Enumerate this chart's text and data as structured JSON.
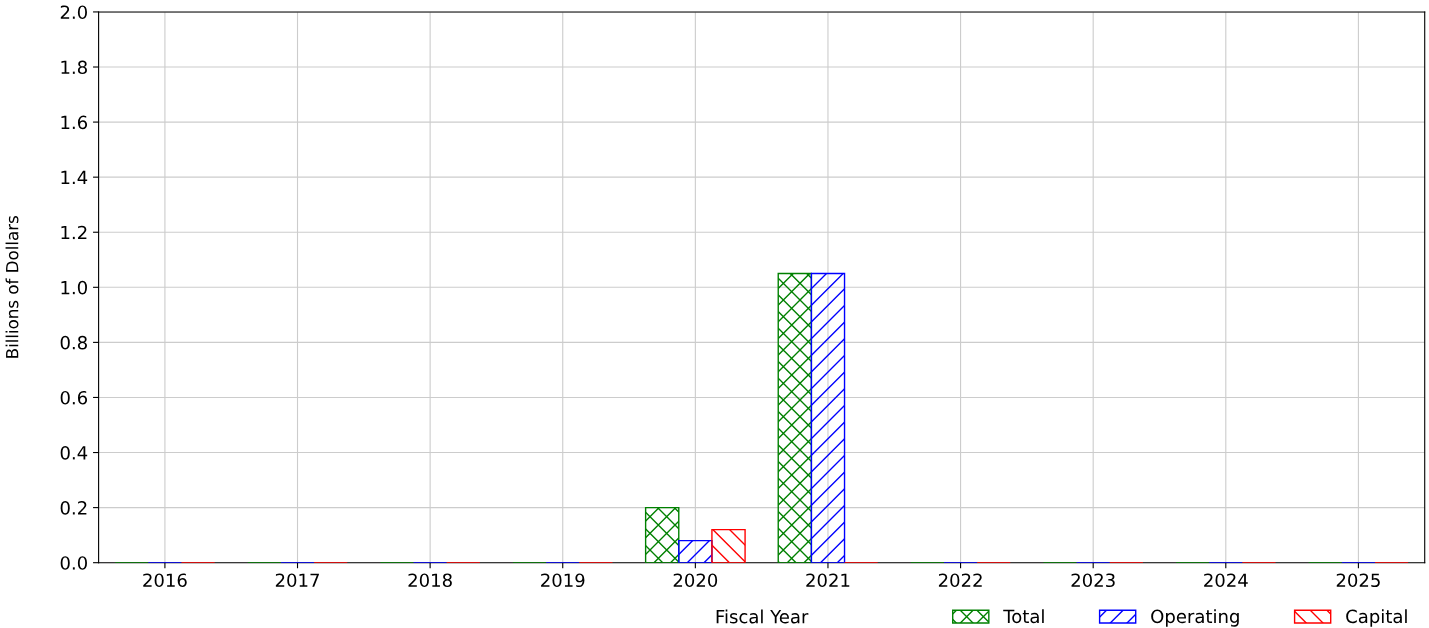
{
  "chart_data": {
    "type": "bar",
    "xlabel": "Fiscal Year",
    "ylabel": "Billions of Dollars",
    "categories": [
      "2016",
      "2017",
      "2018",
      "2019",
      "2020",
      "2021",
      "2022",
      "2023",
      "2024",
      "2025"
    ],
    "series": [
      {
        "name": "Total",
        "color": "#008000",
        "values": [
          0,
          0,
          0,
          0,
          0.2,
          1.05,
          0,
          0,
          0,
          0
        ]
      },
      {
        "name": "Operating",
        "color": "#0000ff",
        "values": [
          0,
          0,
          0,
          0,
          0.08,
          1.05,
          0,
          0,
          0,
          0
        ]
      },
      {
        "name": "Capital",
        "color": "#ff0000",
        "values": [
          0,
          0,
          0,
          0,
          0.12,
          0,
          0,
          0,
          0,
          0
        ]
      }
    ],
    "ylim": [
      0,
      2.0
    ],
    "yticks": [
      {
        "value": 0,
        "label": "0.0"
      },
      {
        "value": 0.2,
        "label": "0.2"
      },
      {
        "value": 0.4,
        "label": "0.4"
      },
      {
        "value": 0.6,
        "label": "0.6"
      },
      {
        "value": 0.8,
        "label": "0.8"
      },
      {
        "value": 1.0,
        "label": "1.0"
      },
      {
        "value": 1.2,
        "label": "1.2"
      },
      {
        "value": 1.4,
        "label": "1.4"
      },
      {
        "value": 1.6,
        "label": "1.6"
      },
      {
        "value": 1.8,
        "label": "1.8"
      },
      {
        "value": 2.0,
        "label": "2.0"
      }
    ],
    "grid": true,
    "legend": "bottom right"
  }
}
